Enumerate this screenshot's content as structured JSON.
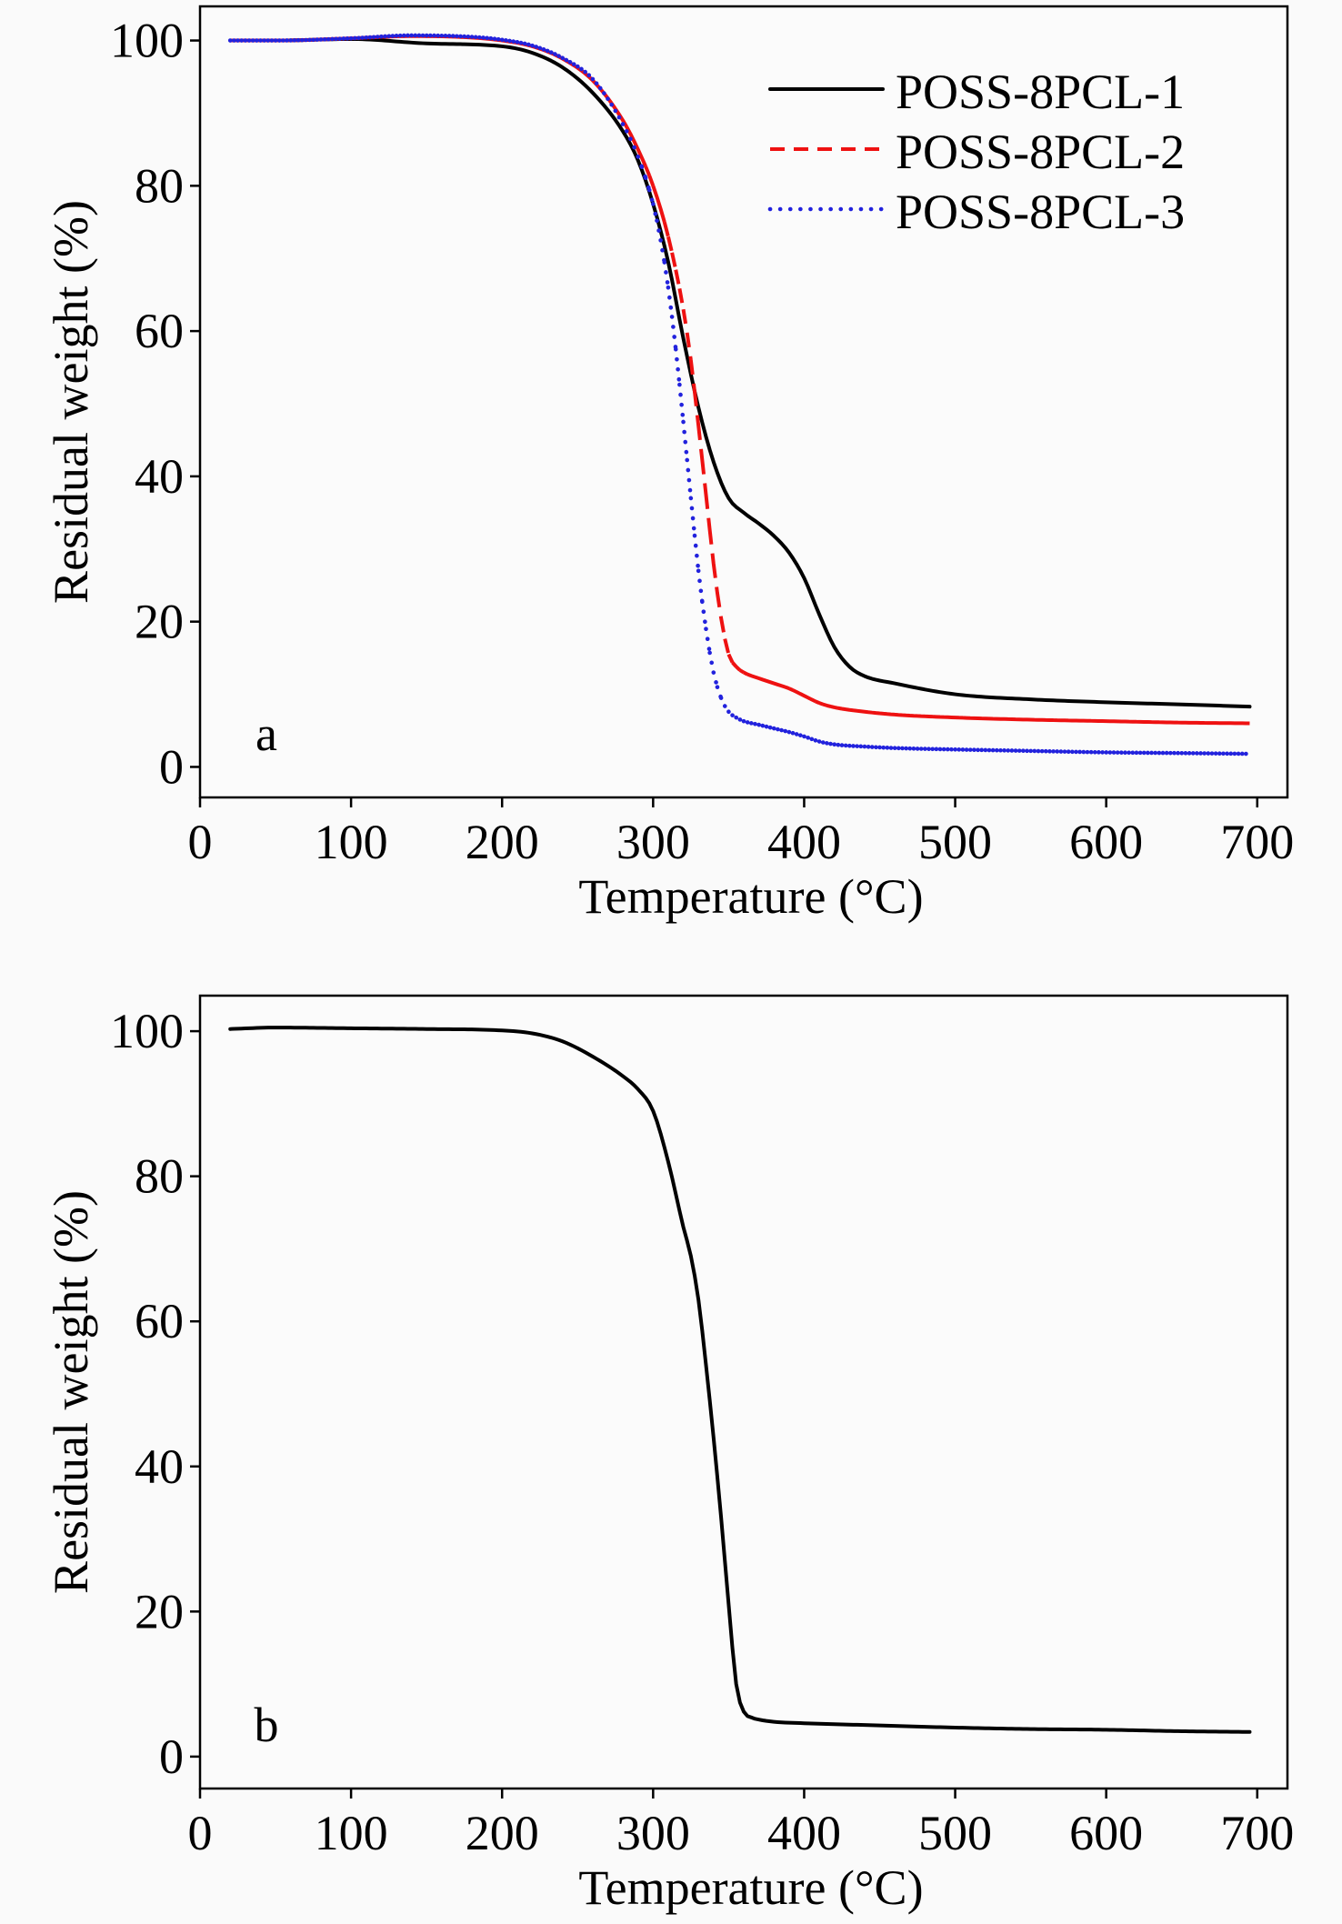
{
  "chart_data": [
    {
      "type": "line",
      "panel_label": "a",
      "xlabel": "Temperature (°C)",
      "ylabel": "Residual weight (%)",
      "xlim": [
        0,
        720
      ],
      "ylim": [
        -4.2,
        104.7
      ],
      "x_ticks": [
        0,
        100,
        200,
        300,
        400,
        500,
        600,
        700
      ],
      "y_ticks": [
        0,
        20,
        40,
        60,
        80,
        100
      ],
      "grid": false,
      "legend_position": "top-right",
      "series": [
        {
          "name": "POSS-8PCL-1",
          "color": "#000000",
          "style": "solid",
          "x": [
            20,
            50,
            100,
            150,
            200,
            220,
            240,
            260,
            280,
            290,
            300,
            310,
            320,
            330,
            340,
            350,
            360,
            370,
            380,
            390,
            400,
            410,
            420,
            430,
            440,
            460,
            500,
            550,
            600,
            650,
            695
          ],
          "y": [
            100,
            100,
            100.2,
            99.6,
            99.2,
            98.3,
            96.3,
            92.8,
            87.5,
            83.5,
            77.5,
            69.5,
            59,
            49.5,
            42,
            37,
            35,
            33.5,
            31.8,
            29.5,
            26,
            21,
            16.5,
            13.8,
            12.5,
            11.5,
            10,
            9.3,
            8.9,
            8.6,
            8.3
          ]
        },
        {
          "name": "POSS-8PCL-2",
          "color": "#ee1111",
          "style": "dashed",
          "x": [
            20,
            50,
            100,
            140,
            180,
            200,
            220,
            240,
            260,
            280,
            290,
            300,
            310,
            320,
            325,
            330,
            335,
            340,
            345,
            350,
            355,
            360,
            370,
            380,
            390,
            400,
            410,
            420,
            440,
            460,
            500,
            550,
            600,
            650,
            695
          ],
          "y": [
            100,
            100,
            100.3,
            100.6,
            100.4,
            100,
            99.2,
            97.5,
            94.5,
            89,
            85,
            80,
            73,
            63,
            56,
            47,
            37.5,
            28,
            20.5,
            15.5,
            13.8,
            13,
            12.2,
            11.5,
            10.8,
            9.8,
            8.8,
            8.2,
            7.6,
            7.2,
            6.8,
            6.5,
            6.3,
            6.1,
            6
          ]
        },
        {
          "name": "POSS-8PCL-3",
          "color": "#2222dd",
          "style": "dotted",
          "x": [
            20,
            50,
            100,
            140,
            180,
            200,
            220,
            240,
            260,
            280,
            290,
            300,
            305,
            310,
            315,
            320,
            325,
            330,
            335,
            340,
            345,
            350,
            355,
            360,
            370,
            380,
            390,
            400,
            410,
            420,
            440,
            460,
            500,
            550,
            600,
            650,
            695
          ],
          "y": [
            100,
            100,
            100.3,
            100.7,
            100.5,
            100.1,
            99.3,
            97.6,
            94.7,
            88.5,
            84,
            77.5,
            72.5,
            66,
            57.5,
            47.5,
            37,
            27,
            19,
            13,
            9.5,
            7.6,
            6.8,
            6.3,
            5.8,
            5.3,
            4.8,
            4.2,
            3.5,
            3.1,
            2.8,
            2.6,
            2.4,
            2.2,
            2.0,
            1.9,
            1.8
          ]
        }
      ]
    },
    {
      "type": "line",
      "panel_label": "b",
      "xlabel": "Temperature (°C)",
      "ylabel": "Residual weight (%)",
      "xlim": [
        0,
        720
      ],
      "ylim": [
        -4.4,
        104.9
      ],
      "x_ticks": [
        0,
        100,
        200,
        300,
        400,
        500,
        600,
        700
      ],
      "y_ticks": [
        0,
        20,
        40,
        60,
        80,
        100
      ],
      "grid": false,
      "series": [
        {
          "color": "#000000",
          "style": "solid",
          "x": [
            20,
            50,
            100,
            150,
            200,
            220,
            240,
            260,
            280,
            290,
            300,
            310,
            320,
            325,
            330,
            335,
            340,
            345,
            350,
            355,
            360,
            365,
            370,
            380,
            400,
            450,
            500,
            550,
            600,
            650,
            695
          ],
          "y": [
            100.3,
            100.5,
            100.4,
            100.3,
            100.1,
            99.7,
            98.6,
            96.5,
            93.8,
            92,
            89,
            82,
            73,
            69,
            63,
            54,
            44,
            33,
            21,
            10,
            6.2,
            5.4,
            5.1,
            4.8,
            4.6,
            4.3,
            4.0,
            3.8,
            3.7,
            3.5,
            3.4
          ]
        }
      ]
    }
  ]
}
